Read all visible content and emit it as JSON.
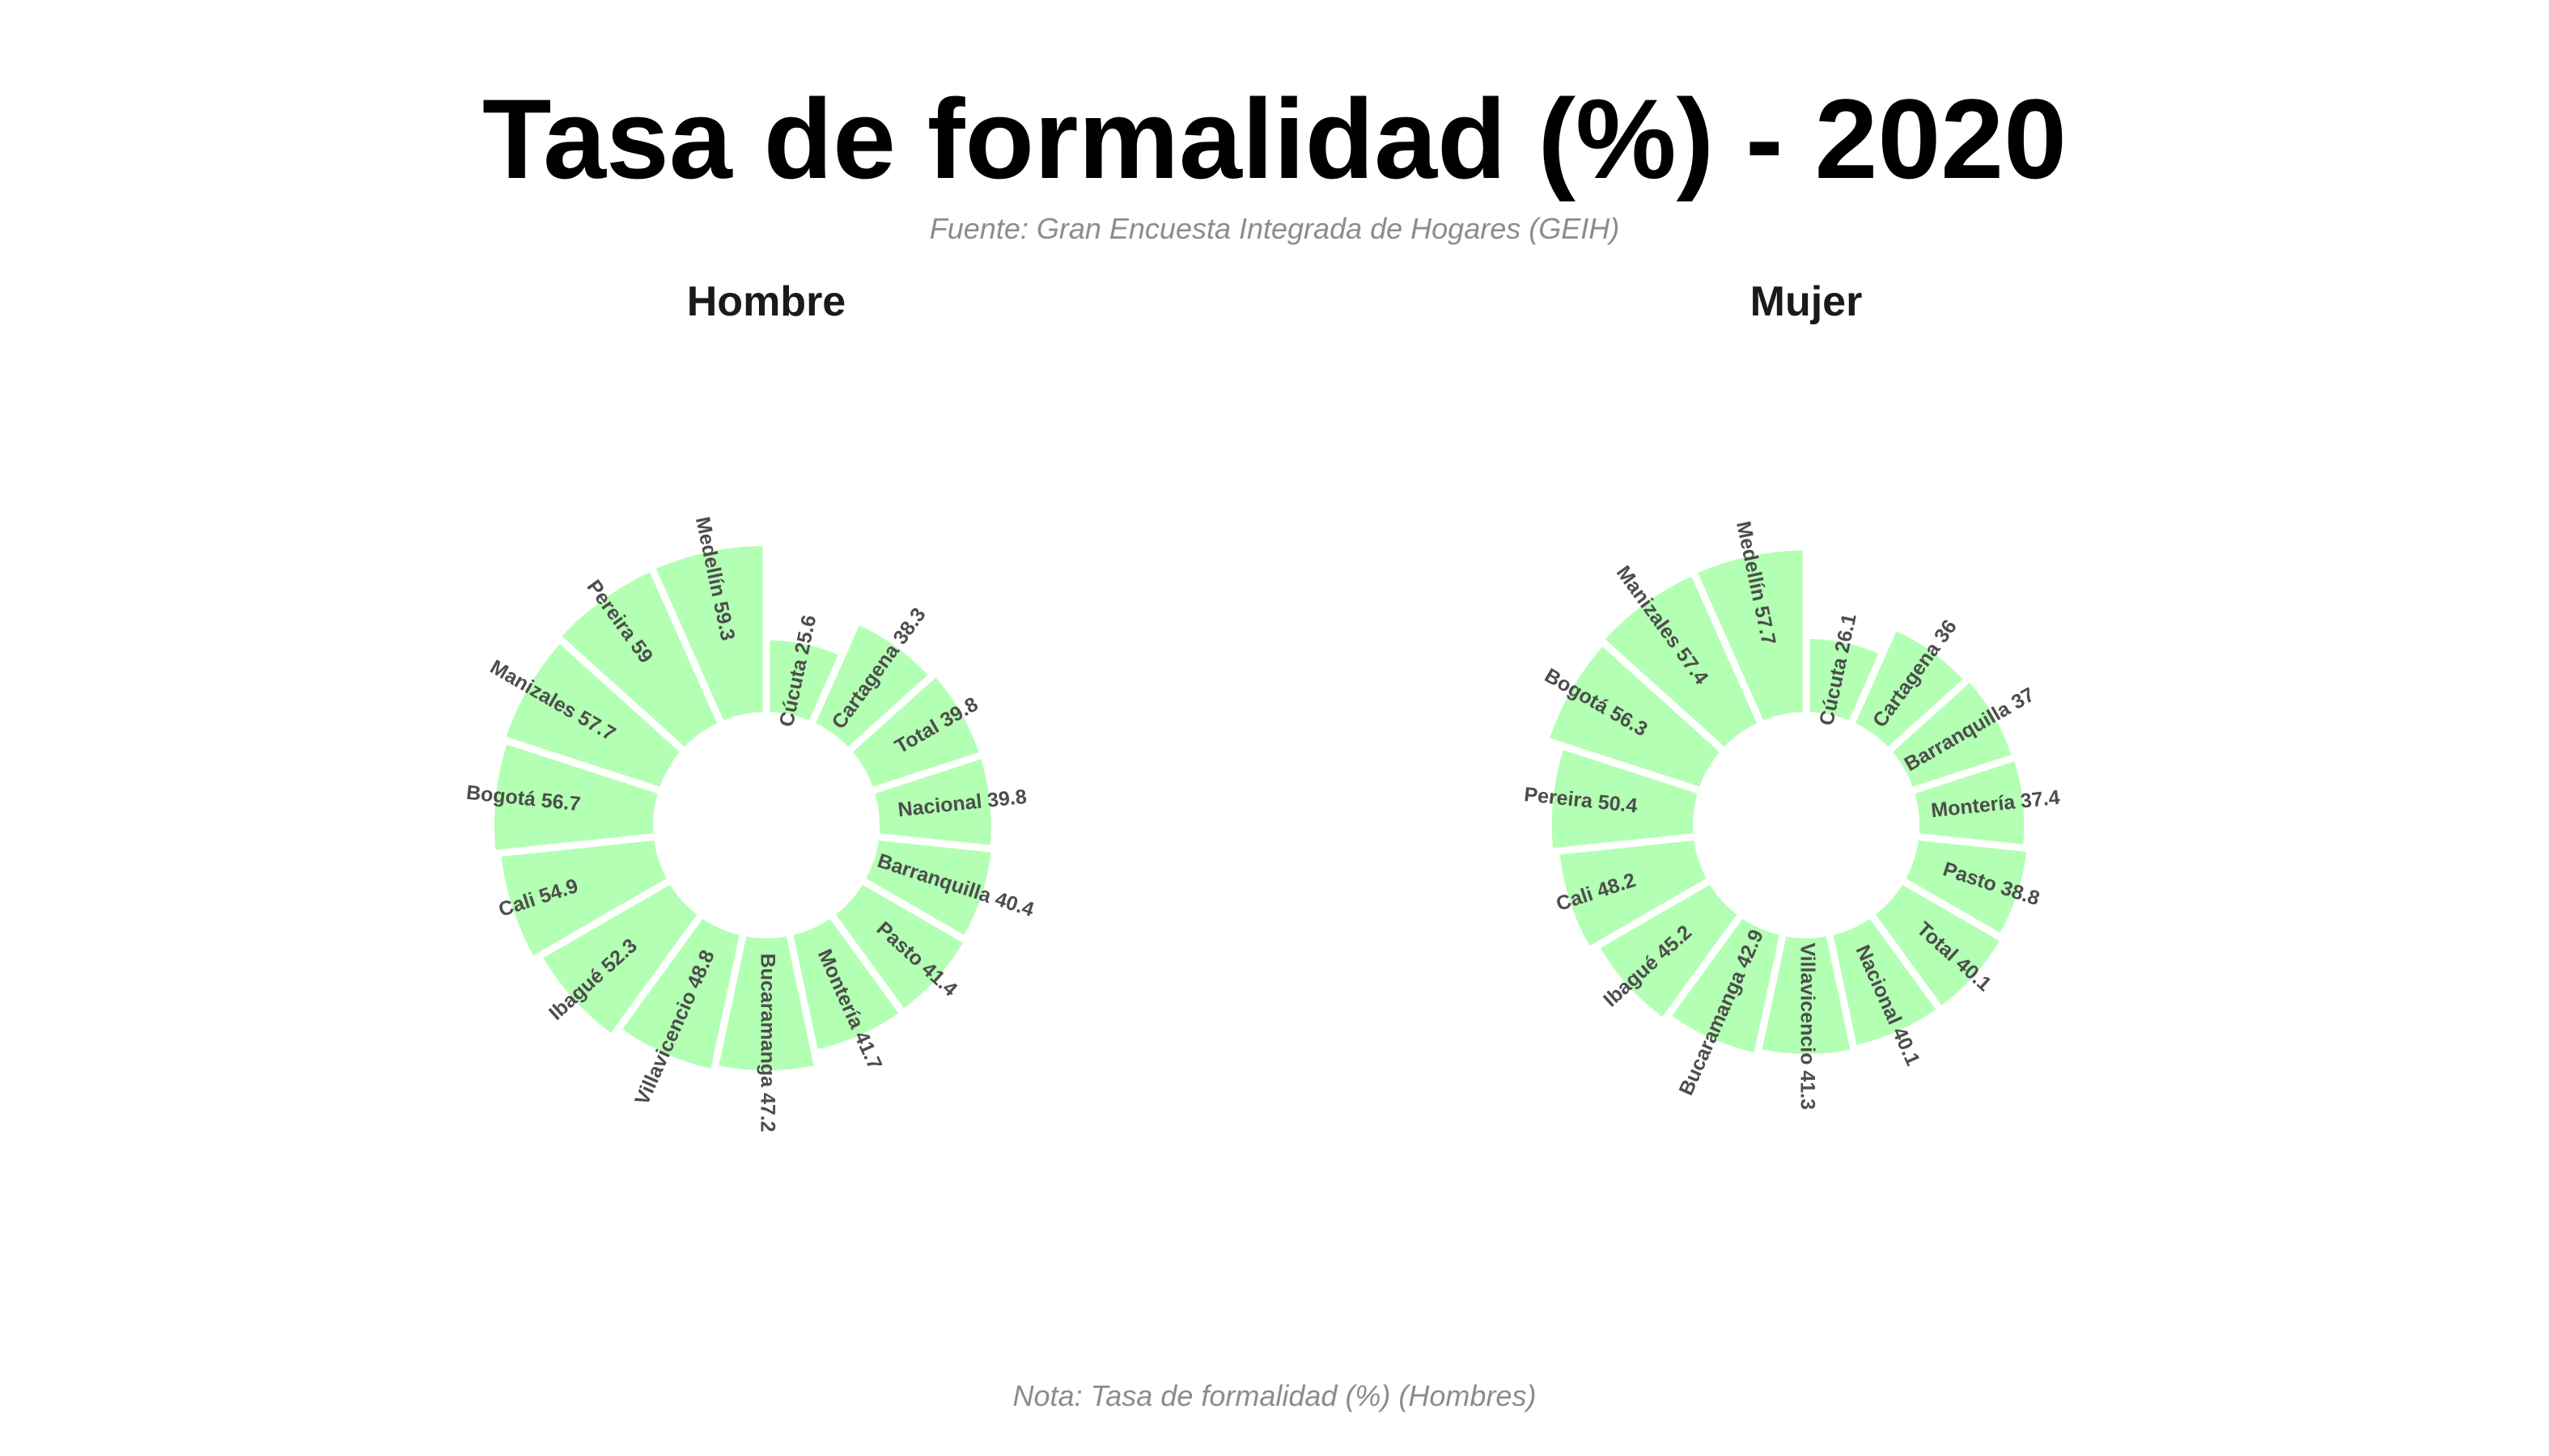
{
  "title": "Tasa de formalidad (%) - 2020",
  "subtitle": "Fuente: Gran Encuesta Integrada de Hogares (GEIH)",
  "caption": "Nota: Tasa de formalidad (%) (Hombres)",
  "colors": {
    "bar_fill": "#b3ffb3",
    "label_text": "#4d4d4d",
    "title_text": "#000000",
    "note_text": "#8c8c8c"
  },
  "chart_data": [
    {
      "type": "bar",
      "polar": true,
      "panel_title": "Hombre",
      "categories": [
        "Cúcuta",
        "Cartagena",
        "Total",
        "Nacional",
        "Barranquilla",
        "Pasto",
        "Montería",
        "Bucaramanga",
        "Villavicencio",
        "Ibagué",
        "Cali",
        "Bogotá",
        "Manizales",
        "Pereira",
        "Medellín"
      ],
      "values": [
        25.6,
        38.3,
        39.8,
        39.8,
        40.4,
        41.4,
        41.7,
        47.2,
        48.8,
        52.3,
        54.9,
        56.7,
        57.7,
        59,
        59.3
      ]
    },
    {
      "type": "bar",
      "polar": true,
      "panel_title": "Mujer",
      "categories": [
        "Cúcuta",
        "Cartagena",
        "Barranquilla",
        "Montería",
        "Pasto",
        "Total",
        "Nacional",
        "Villavicencio",
        "Bucaramanga",
        "Ibagué",
        "Cali",
        "Pereira",
        "Bogotá",
        "Manizales",
        "Medellín"
      ],
      "values": [
        26.1,
        36,
        37,
        37.4,
        38.8,
        40.1,
        40.1,
        41.3,
        42.9,
        45.2,
        48.2,
        50.4,
        56.3,
        57.4,
        57.7
      ]
    }
  ]
}
